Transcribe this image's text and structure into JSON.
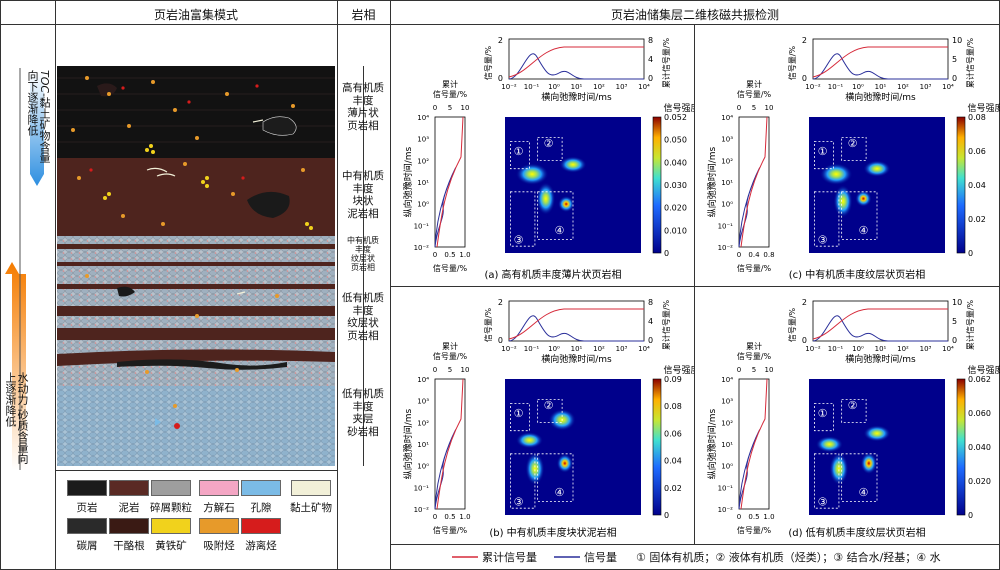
{
  "headers": {
    "col1": "页岩油富集模式",
    "col2": "岩相",
    "col3": "页岩油储集层二维核磁共振检测"
  },
  "side_arrows": {
    "top_text_italic": "TOC",
    "top_text": "-黏土矿物含量向下逐渐降低",
    "bottom_text": "水动力-砂质含量向上逐渐降低"
  },
  "facies": [
    {
      "lines": [
        "高有机质",
        "丰度",
        "薄片状",
        "页岩相"
      ]
    },
    {
      "lines": [
        "中有机质",
        "丰度",
        "块状",
        "泥岩相"
      ]
    },
    {
      "lines": [
        "中有机质",
        "丰度",
        "纹层状",
        "页岩相"
      ]
    },
    {
      "lines": [
        "低有机质",
        "丰度",
        "纹层状",
        "页岩相"
      ]
    },
    {
      "lines": [
        "低有机质",
        "丰度",
        "夹层",
        "砂岩相"
      ]
    }
  ],
  "legend": [
    {
      "label": "页岩",
      "color": "#1b1b1b"
    },
    {
      "label": "泥岩",
      "color": "#5a2a24"
    },
    {
      "label": "碎屑颗粒",
      "color": "#9e9e9e"
    },
    {
      "label": "方解石",
      "color": "#f4a6c4"
    },
    {
      "label": "孔隙",
      "color": "#7bbbe6"
    },
    {
      "label": "黏土矿物",
      "color": "#f2f0d8"
    },
    {
      "label": "碳屑",
      "color": "#2a2a2a"
    },
    {
      "label": "干酪根",
      "color": "#3a1a14"
    },
    {
      "label": "黄铁矿",
      "color": "#f1d21c"
    },
    {
      "label": "吸附烃",
      "color": "#e79a2a"
    },
    {
      "label": "游离烃",
      "color": "#d61c1c"
    }
  ],
  "panels": [
    {
      "caption": "(a) 高有机质丰度薄片状页岩相",
      "top_right_axis_max": "8",
      "top_right_axis_mid": "4",
      "top_right_axis_min": "0",
      "top_left_axis": "2",
      "top_left_axis0": "0",
      "left_ticks_top": [
        "0",
        "5",
        "10"
      ],
      "left_ticks_bottom": [
        "0",
        "0.5",
        "1.0"
      ],
      "colorbar_title": "信号强度:",
      "colorbar_ticks": [
        "0.052",
        "0.050",
        "0.040",
        "0.030",
        "0.020",
        "0.010",
        "0"
      ]
    },
    {
      "caption": "(c) 中有机质丰度纹层状页岩相",
      "top_right_axis_max": "10",
      "top_right_axis_mid": "5",
      "top_right_axis_min": "0",
      "top_left_axis": "2",
      "top_left_axis0": "0",
      "left_ticks_top": [
        "0",
        "5",
        "10"
      ],
      "left_ticks_bottom": [
        "0",
        "0.4",
        "0.8"
      ],
      "colorbar_title": "信号强度:",
      "colorbar_ticks": [
        "0.08",
        "0.06",
        "0.04",
        "0.02",
        "0"
      ]
    },
    {
      "caption": "(b) 中有机质丰度块状泥岩相",
      "top_right_axis_max": "8",
      "top_right_axis_mid": "4",
      "top_right_axis_min": "0",
      "top_left_axis": "2",
      "top_left_axis0": "0",
      "left_ticks_top": [
        "0",
        "5",
        "10"
      ],
      "left_ticks_bottom": [
        "0",
        "0.5",
        "1.0"
      ],
      "colorbar_title": "信号强度:",
      "colorbar_ticks": [
        "0.09",
        "0.08",
        "0.06",
        "0.04",
        "0.02",
        "0"
      ]
    },
    {
      "caption": "(d) 低有机质丰度纹层状页岩相",
      "top_right_axis_max": "10",
      "top_right_axis_mid": "5",
      "top_right_axis_min": "0",
      "top_left_axis": "2",
      "top_left_axis0": "0",
      "left_ticks_top": [
        "0",
        "5",
        "10"
      ],
      "left_ticks_bottom": [
        "0",
        "0.5",
        "1.0"
      ],
      "colorbar_title": "信号强度:",
      "colorbar_ticks": [
        "0.062",
        "0.060",
        "0.040",
        "0.020",
        "0"
      ]
    }
  ],
  "axis_text": {
    "top_left_label": "信号量/%",
    "top_right_label": "累计信号量/%",
    "x_label": "横向弛豫时间/ms",
    "x_ticks": [
      "10⁻²",
      "10⁻¹",
      "10⁰",
      "10¹",
      "10²",
      "10³",
      "10⁴"
    ],
    "left_top_label": "累计信号量/%",
    "left_bottom_label": "信号量/%",
    "y_label": "纵向弛豫时间/ms",
    "y_ticks": [
      "10⁴",
      "10³",
      "10²",
      "10¹",
      "10⁰",
      "10⁻¹",
      "10⁻²"
    ],
    "regions": [
      "①",
      "②",
      "③",
      "④"
    ]
  },
  "bottom_legend": {
    "cumulative": "累计信号量",
    "signal": "信号量",
    "cumulative_color": "#d62a3a",
    "signal_color": "#2a2f9a",
    "regions_text": "① 固体有机质；② 液体有机质（烃类）；③ 结合水/羟基；④ 水"
  }
}
